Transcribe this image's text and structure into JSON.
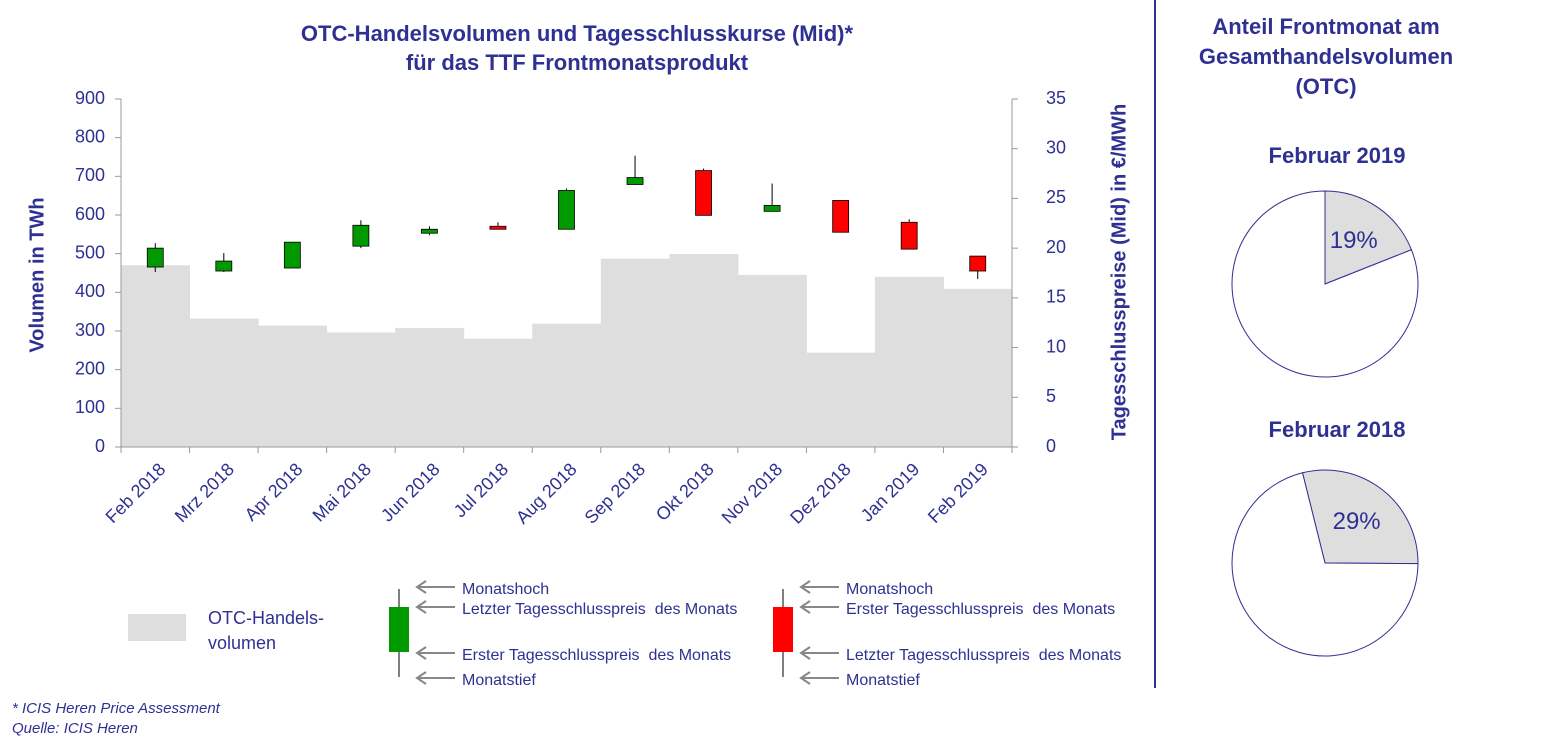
{
  "chart_data": [
    {
      "type": "bar_candlestick",
      "title": [
        "OTC-Handelsvolumen und Tagesschlusskurse (Mid)*",
        "für das TTF Frontmonatsprodukt"
      ],
      "ylabel": "Volumen in TWh",
      "y2label": "Tagesschlusspreise (Mid) in €/MWh",
      "categories": [
        "Feb 2018",
        "Mrz 2018",
        "Apr 2018",
        "Mai 2018",
        "Jun 2018",
        "Jul 2018",
        "Aug 2018",
        "Sep 2018",
        "Okt 2018",
        "Nov 2018",
        "Dez 2018",
        "Jan 2019",
        "Feb 2019"
      ],
      "series": [
        {
          "name": [
            "OTC-Handels-",
            "volumen"
          ],
          "color": "#dedede",
          "values": [
            470,
            332,
            314,
            296,
            308,
            280,
            319,
            487,
            499,
            445,
            244,
            440,
            409
          ]
        },
        {
          "axis": "y2",
          "up_color": "#009900",
          "down_color": "#ff0000",
          "open": [
            18.1,
            17.7,
            18.0,
            20.2,
            21.5,
            22.2,
            21.9,
            26.4,
            27.8,
            23.7,
            24.8,
            22.6,
            19.2
          ],
          "high": [
            20.5,
            19.5,
            20.6,
            22.8,
            22.2,
            22.6,
            26.0,
            29.3,
            28.0,
            26.5,
            24.8,
            22.9,
            19.2
          ],
          "low": [
            17.6,
            17.6,
            18.0,
            20.0,
            21.3,
            21.9,
            21.9,
            26.4,
            23.3,
            23.7,
            21.6,
            19.9,
            16.9
          ],
          "close": [
            20.0,
            18.7,
            20.6,
            22.3,
            21.9,
            21.9,
            25.8,
            27.1,
            23.3,
            24.3,
            21.6,
            19.9,
            17.7
          ]
        }
      ],
      "candle_legend": [
        {
          "color": "#009900",
          "labels": [
            "Monatshoch",
            "Letzter Tagesschlusspreis  des Monats",
            "Erster Tagesschlusspreis  des Monats",
            "Monatstief"
          ]
        },
        {
          "color": "#ff0000",
          "labels": [
            "Monatshoch",
            "Erster Tagesschlusspreis  des Monats",
            "Letzter Tagesschlusspreis  des Monats",
            "Monatstief"
          ]
        }
      ],
      "ylim": [
        0,
        900
      ],
      "yticks": [
        0,
        100,
        200,
        300,
        400,
        500,
        600,
        700,
        800,
        900
      ],
      "y2lim": [
        0,
        35
      ],
      "y2ticks": [
        0,
        5,
        10,
        15,
        20,
        25,
        30,
        35
      ]
    },
    {
      "type": "pie",
      "title": "Februar 2019",
      "values": [
        19,
        81
      ],
      "value_labels": [
        "19%",
        null
      ],
      "colors": [
        "#dedede",
        "#ffffff"
      ],
      "start_angle": 0
    },
    {
      "type": "pie",
      "title": "Februar 2018",
      "values": [
        29,
        71
      ],
      "value_labels": [
        "29%",
        null
      ],
      "colors": [
        "#dedede",
        "#ffffff"
      ],
      "start_angle": -14
    }
  ],
  "side_title": [
    "Anteil Frontmonat am",
    "Gesamthandelsvolumen",
    "(OTC)"
  ],
  "footnotes": [
    "* ICIS Heren Price Assessment",
    "Quelle: ICIS Heren"
  ]
}
